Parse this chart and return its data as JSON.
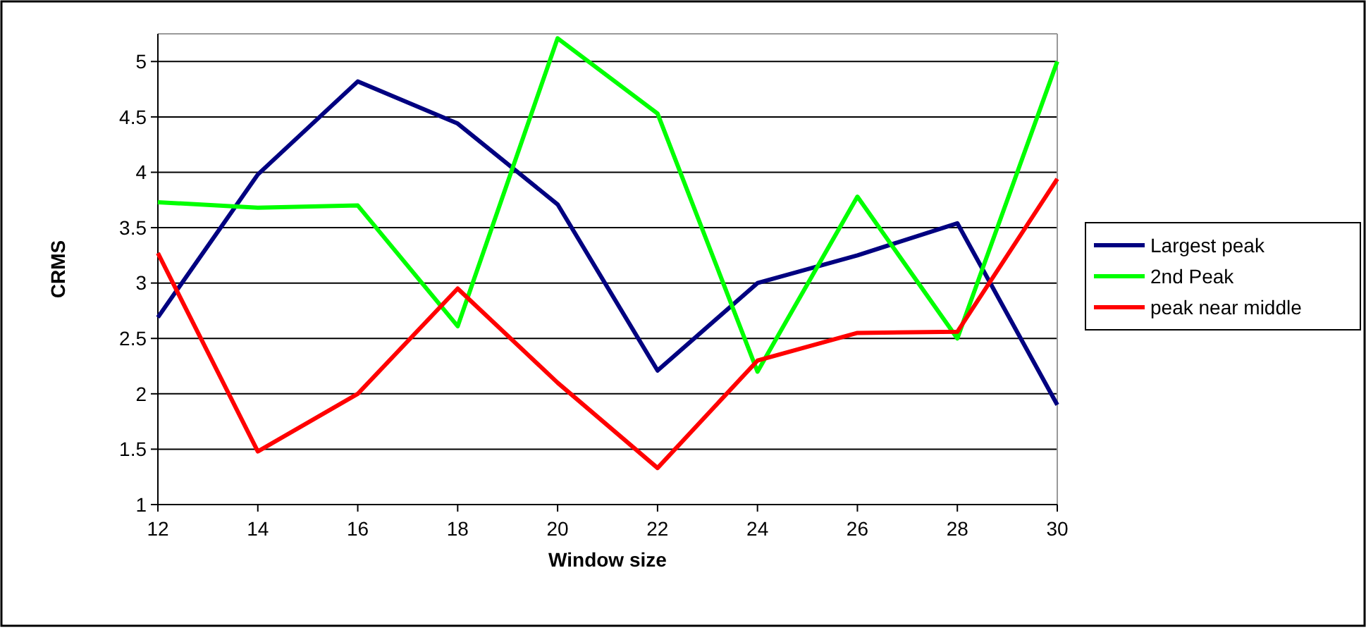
{
  "chart_data": {
    "type": "line",
    "xlabel": "Window size",
    "ylabel": "CRMS",
    "x": [
      12,
      14,
      16,
      18,
      20,
      22,
      24,
      26,
      28,
      30
    ],
    "xlim": [
      12,
      30
    ],
    "xticks": [
      12,
      14,
      16,
      18,
      20,
      22,
      24,
      26,
      28,
      30
    ],
    "ylim": [
      1,
      5.25
    ],
    "yticks": [
      1,
      1.5,
      2,
      2.5,
      3,
      3.5,
      4,
      4.5,
      5
    ],
    "grid": "y",
    "legend": "right",
    "marker": "none",
    "line_style": "solid",
    "series": [
      {
        "name": "Largest peak",
        "color": "#000080",
        "values": [
          2.69,
          3.98,
          4.82,
          4.44,
          3.71,
          2.21,
          3.0,
          3.25,
          3.54,
          1.9
        ]
      },
      {
        "name": "2nd Peak",
        "color": "#00ff00",
        "values": [
          3.73,
          3.68,
          3.7,
          2.61,
          5.21,
          4.53,
          2.2,
          3.78,
          2.5,
          5.0
        ]
      },
      {
        "name": "peak near middle",
        "color": "#ff0000",
        "values": [
          3.27,
          1.48,
          2.0,
          2.95,
          2.1,
          1.33,
          2.3,
          2.55,
          2.56,
          3.94
        ]
      }
    ]
  }
}
